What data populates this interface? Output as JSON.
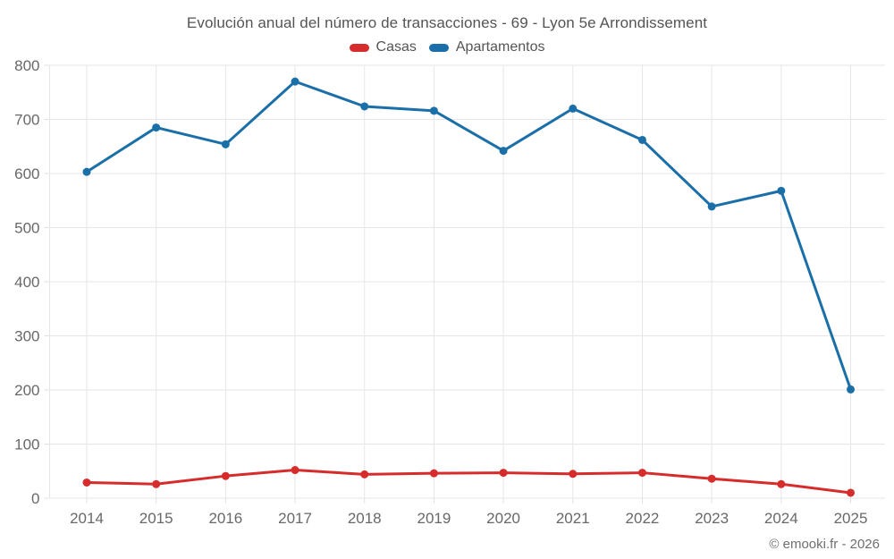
{
  "page": {
    "title": "Evolución anual del número de transacciones - 69 - Lyon 5e Arrondissement",
    "footer": "© emooki.fr - 2026"
  },
  "legend": {
    "items": [
      {
        "label": "Casas",
        "color": "#d62c2c"
      },
      {
        "label": "Apartamentos",
        "color": "#1b6fa8"
      }
    ]
  },
  "chart_data": {
    "type": "line",
    "title": "Evolución anual del número de transacciones - 69 - Lyon 5e Arrondissement",
    "x": [
      "2014",
      "2015",
      "2016",
      "2017",
      "2018",
      "2019",
      "2020",
      "2021",
      "2022",
      "2023",
      "2024",
      "2025"
    ],
    "series": [
      {
        "name": "Casas",
        "color": "#d62c2c",
        "values": [
          29,
          26,
          41,
          52,
          44,
          46,
          47,
          45,
          47,
          36,
          26,
          10
        ]
      },
      {
        "name": "Apartamentos",
        "color": "#1b6fa8",
        "values": [
          603,
          685,
          654,
          770,
          724,
          716,
          642,
          720,
          662,
          539,
          568,
          201
        ]
      }
    ],
    "xlabel": "",
    "ylabel": "",
    "ylim": [
      0,
      800
    ],
    "ytick_step": 100,
    "grid": true,
    "legend_position": "top",
    "marker_radius": 4.5,
    "line_width": 3
  },
  "style": {
    "background": "#ffffff",
    "grid_color": "#e6e6e6",
    "tick_color": "#e0e0e0",
    "axis_label_color": "#686868",
    "title_color": "#545454",
    "footer_color": "#6f6f6f"
  }
}
